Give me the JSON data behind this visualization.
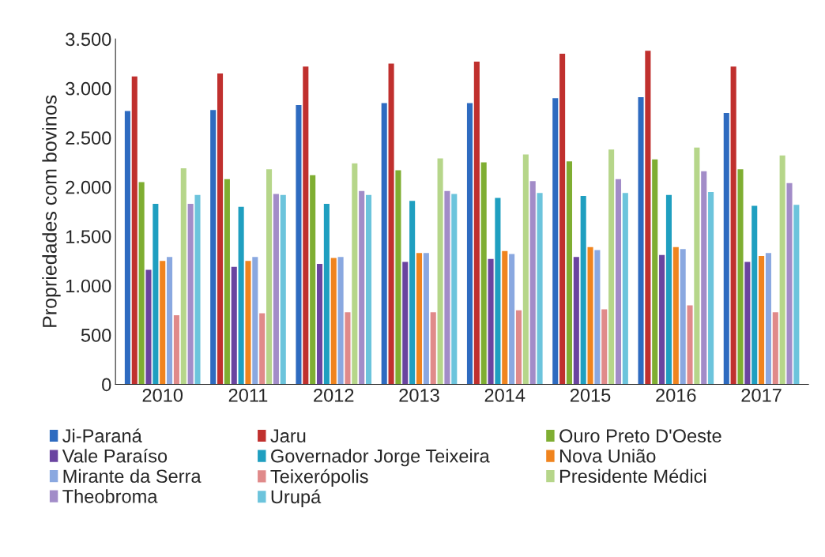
{
  "chart_data": {
    "type": "bar",
    "ylabel": "Propriedades com bovinos",
    "categories": [
      "2010",
      "2011",
      "2012",
      "2013",
      "2014",
      "2015",
      "2016",
      "2017"
    ],
    "series": [
      {
        "name": "Ji-Paraná",
        "color": "#2e6bc0",
        "values": [
          2770,
          2780,
          2830,
          2850,
          2850,
          2900,
          2910,
          2750
        ]
      },
      {
        "name": "Jaru",
        "color": "#c0302e",
        "values": [
          3120,
          3150,
          3220,
          3250,
          3270,
          3350,
          3380,
          3220
        ]
      },
      {
        "name": "Ouro Preto D'Oeste",
        "color": "#7fae32",
        "values": [
          2050,
          2080,
          2120,
          2170,
          2250,
          2260,
          2280,
          2180
        ]
      },
      {
        "name": "Vale Paraíso",
        "color": "#6a44a0",
        "values": [
          1160,
          1190,
          1220,
          1240,
          1270,
          1290,
          1310,
          1240
        ]
      },
      {
        "name": "Governador Jorge Teixeira",
        "color": "#1f9fc0",
        "values": [
          1830,
          1800,
          1830,
          1860,
          1890,
          1910,
          1920,
          1810
        ]
      },
      {
        "name": "Nova União",
        "color": "#f0841e",
        "values": [
          1250,
          1250,
          1280,
          1330,
          1350,
          1390,
          1390,
          1300
        ]
      },
      {
        "name": "Mirante da Serra",
        "color": "#8aa8e0",
        "values": [
          1290,
          1290,
          1290,
          1330,
          1320,
          1360,
          1370,
          1330
        ]
      },
      {
        "name": "Teixerópolis",
        "color": "#e08a8a",
        "values": [
          700,
          720,
          730,
          730,
          750,
          760,
          800,
          730
        ]
      },
      {
        "name": "Presidente Médici",
        "color": "#b6d68a",
        "values": [
          2190,
          2180,
          2240,
          2290,
          2330,
          2380,
          2400,
          2320
        ]
      },
      {
        "name": "Theobroma",
        "color": "#a28cc8",
        "values": [
          1830,
          1930,
          1960,
          1960,
          2060,
          2080,
          2160,
          2040
        ]
      },
      {
        "name": "Urupá",
        "color": "#6cc4dc",
        "values": [
          1920,
          1920,
          1920,
          1930,
          1940,
          1940,
          1950,
          1820
        ]
      }
    ],
    "ylim": [
      0,
      3500
    ],
    "yticks": [
      0,
      500,
      {
        "value": 1000,
        "label": "1.000"
      },
      {
        "value": 1500,
        "label": "1.500"
      },
      {
        "value": 2000,
        "label": "2.000"
      },
      {
        "value": 2500,
        "label": "2.500"
      },
      {
        "value": 3000,
        "label": "3.000"
      },
      {
        "value": 3500,
        "label": "3.500"
      }
    ],
    "legend": "bottom",
    "grid": false
  }
}
